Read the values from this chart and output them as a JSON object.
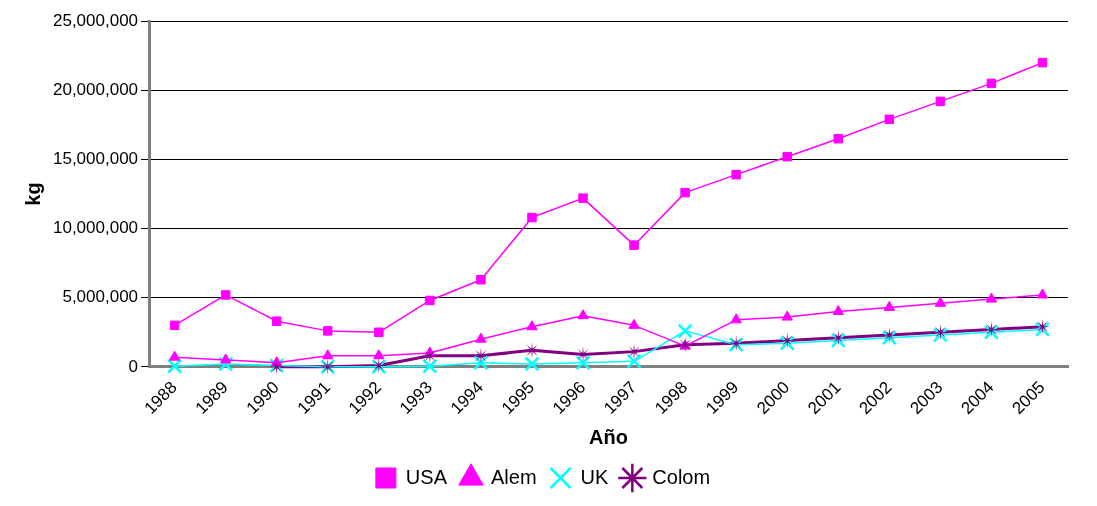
{
  "chart_data": {
    "type": "line",
    "xlabel": "Año",
    "ylabel": "kg",
    "categories": [
      "1988",
      "1989",
      "1990",
      "1991",
      "1992",
      "1993",
      "1994",
      "1995",
      "1996",
      "1997",
      "1998",
      "1999",
      "2000",
      "2001",
      "2002",
      "2003",
      "2004",
      "2005"
    ],
    "series": [
      {
        "name": "USA",
        "color": "#ff00ff",
        "marker": "square",
        "values": [
          3000000,
          5200000,
          3300000,
          2600000,
          2500000,
          4800000,
          6300000,
          10800000,
          12200000,
          8800000,
          12600000,
          13900000,
          15200000,
          16500000,
          17900000,
          19200000,
          20500000,
          22000000
        ]
      },
      {
        "name": "Alem",
        "color": "#ff00ff",
        "marker": "triangle",
        "values": [
          700000,
          500000,
          300000,
          800000,
          800000,
          1000000,
          2000000,
          2900000,
          3700000,
          3000000,
          1500000,
          3400000,
          3600000,
          4000000,
          4300000,
          4600000,
          4900000,
          5200000
        ]
      },
      {
        "name": "UK",
        "color": "#00ffff",
        "marker": "cross",
        "values": [
          50000,
          200000,
          100000,
          0,
          0,
          50000,
          300000,
          200000,
          300000,
          400000,
          2600000,
          1600000,
          1700000,
          1900000,
          2100000,
          2300000,
          2500000,
          2700000
        ]
      },
      {
        "name": "Colom",
        "color": "#800080",
        "marker": "star",
        "values": [
          null,
          null,
          0,
          0,
          100000,
          800000,
          800000,
          1200000,
          900000,
          1100000,
          1600000,
          1700000,
          1900000,
          2100000,
          2300000,
          2500000,
          2700000,
          2900000
        ]
      }
    ],
    "ylim": [
      0,
      25000000
    ],
    "yticks": [
      0,
      {
        "value": 5000000,
        "label": "5,000,000"
      },
      {
        "value": 10000000,
        "label": "10,000,000"
      },
      {
        "value": 15000000,
        "label": "15,000,000"
      },
      {
        "value": 20000000,
        "label": "20,000,000"
      },
      {
        "value": 25000000,
        "label": "25,000,000"
      }
    ],
    "grid": "y",
    "legend": "bottom"
  }
}
